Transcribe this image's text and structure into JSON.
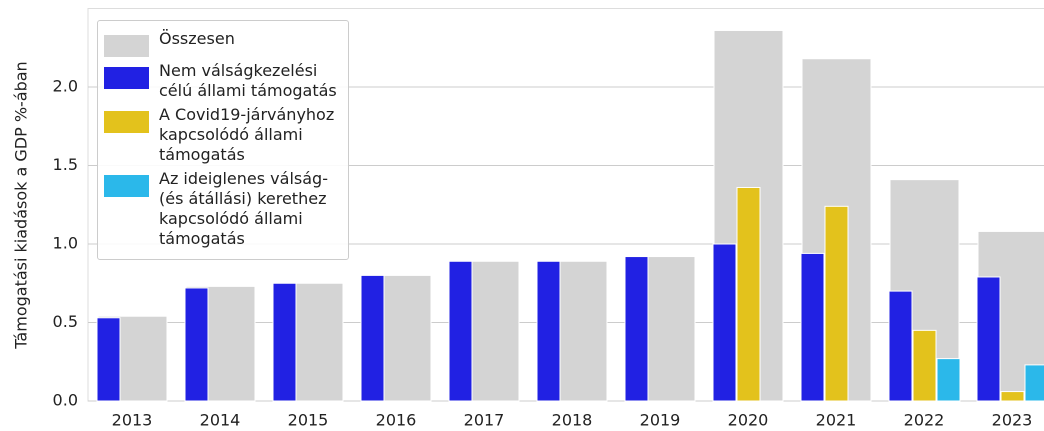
{
  "chart_data": {
    "type": "bar",
    "y_label": "Támogatási kiadások a GDP %-ában",
    "categories": [
      "2013",
      "2014",
      "2015",
      "2016",
      "2017",
      "2018",
      "2019",
      "2020",
      "2021",
      "2022",
      "2023"
    ],
    "series": [
      {
        "name": "Összesen",
        "color": "#d4d4d4",
        "values": [
          0.54,
          0.73,
          0.75,
          0.8,
          0.89,
          0.89,
          0.92,
          2.36,
          2.18,
          1.41,
          1.08
        ]
      },
      {
        "name": "Nem válságkezelési célú állami támogatás",
        "color": "#2121e3",
        "values": [
          0.53,
          0.72,
          0.75,
          0.8,
          0.89,
          0.89,
          0.92,
          1.0,
          0.94,
          0.7,
          0.79
        ]
      },
      {
        "name": "A Covid19-járványhoz kapcsolódó állami támogatás",
        "color": "#e3c21c",
        "values": [
          null,
          null,
          null,
          null,
          null,
          null,
          null,
          1.36,
          1.24,
          0.45,
          0.06
        ]
      },
      {
        "name": "Az ideiglenes válság- (és átállási) kerethez kapcsolódó állami támogatás",
        "color": "#2bb8ea",
        "values": [
          null,
          null,
          null,
          null,
          null,
          null,
          null,
          null,
          null,
          0.27,
          0.23
        ]
      }
    ],
    "ylim": [
      0,
      2.5
    ],
    "yticks": [
      {
        "value": 0,
        "label": "0.0"
      },
      0.5,
      {
        "value": 1,
        "label": "1.0"
      },
      1.5,
      {
        "value": 2,
        "label": "2.0"
      }
    ],
    "grid": true,
    "legend": "upper left"
  }
}
